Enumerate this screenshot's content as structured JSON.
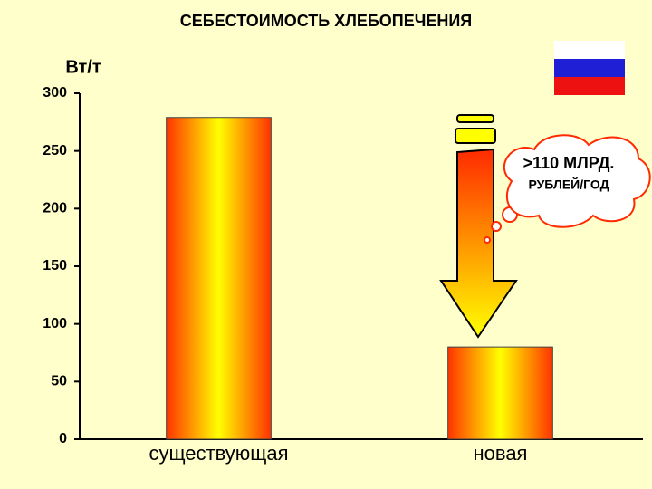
{
  "chart_data": {
    "type": "bar",
    "title": "СЕБЕСТОИМОСТЬ ХЛЕБОПЕЧЕНИЯ",
    "y_label": "Вт/т",
    "categories": [
      "существующая",
      "новая"
    ],
    "values": [
      279,
      80
    ],
    "color": "#ff3300",
    "ylim": [
      0,
      300
    ],
    "yticks": [
      0,
      50,
      100,
      150,
      200,
      250,
      300
    ],
    "annotation": [
      ">110 МЛРД.",
      "РУБЛЕЙ/ГОД"
    ]
  }
}
